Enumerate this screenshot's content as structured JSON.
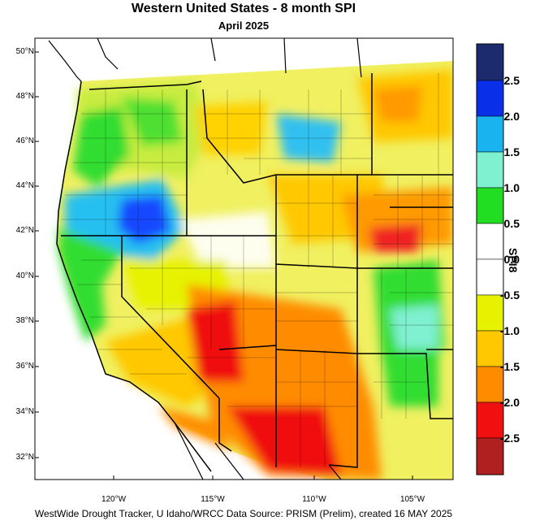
{
  "title": "Western United States - 8 month SPI",
  "subtitle": "April 2025",
  "footer": "WestWide Drought Tracker, U Idaho/WRCC Data Source: PRISM (Prelim), created 16 MAY 2025",
  "lat_labels": [
    "50°N",
    "48°N",
    "46°N",
    "44°N",
    "42°N",
    "40°N",
    "38°N",
    "36°N",
    "34°N",
    "32°N"
  ],
  "lon_labels": [
    "120°W",
    "115°W",
    "110°W",
    "105°W"
  ],
  "colorbar": {
    "title": "SPI8",
    "labels": [
      "2.5",
      "2.0",
      "1.5",
      "1.0",
      "0.5",
      "0.0",
      "-0.5",
      "-1.0",
      "-1.5",
      "-2.0",
      "-2.5"
    ],
    "colors": [
      "#1c2a6e",
      "#0a2fe8",
      "#19b3f0",
      "#7ff0d0",
      "#22dd22",
      "#ffffff",
      "#ffffff",
      "#e6f200",
      "#ffc800",
      "#ff8c00",
      "#f01010",
      "#b02020"
    ]
  }
}
